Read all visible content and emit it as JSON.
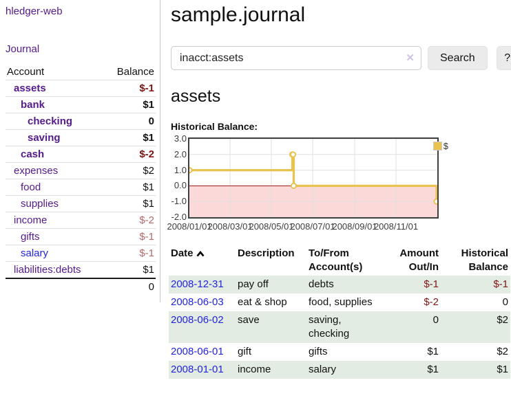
{
  "colors": {
    "purple_link": "#551a8b",
    "blue_link": "#2323dd",
    "negative_strong": "#801515",
    "negative_dim": "#b56a6a",
    "row_stripe_green": "#e2ece2",
    "series_gold": "#e9c24f",
    "negative_area_pink": "#fbd9d9",
    "zero_line_red": "#a01010",
    "button_gray": "#ebebeb"
  },
  "sidebar": {
    "app_title": "hledger-web",
    "nav": {
      "journal": "Journal"
    },
    "accounts": {
      "headers": {
        "account": "Account",
        "balance": "Balance"
      },
      "rows": [
        {
          "name": "assets",
          "balance": "$-1"
        },
        {
          "name": "bank",
          "balance": "$1"
        },
        {
          "name": "checking",
          "balance": "0"
        },
        {
          "name": "saving",
          "balance": "$1"
        },
        {
          "name": "cash",
          "balance": "$-2"
        },
        {
          "name": "expenses",
          "balance": "$2"
        },
        {
          "name": "food",
          "balance": "$1"
        },
        {
          "name": "supplies",
          "balance": "$1"
        },
        {
          "name": "income",
          "balance": "$-2"
        },
        {
          "name": "gifts",
          "balance": "$-1"
        },
        {
          "name": "salary",
          "balance": "$-1"
        },
        {
          "name": "liabilities:debts",
          "balance": "$1"
        }
      ],
      "total": "0"
    }
  },
  "main": {
    "title": "sample.journal",
    "search": {
      "value": "inacct:assets",
      "clear_icon": "✕",
      "button": "Search",
      "help_button": "?"
    },
    "account_heading": "assets",
    "chart_title": "Historical Balance:"
  },
  "chart_data": {
    "type": "line",
    "step": "after",
    "title": "Historical Balance:",
    "legend": [
      {
        "label": "$",
        "color": "#e9c24f"
      }
    ],
    "x_domain": [
      "2008-01-01",
      "2009-01-01"
    ],
    "ylim": [
      -2,
      3
    ],
    "yticks": [
      3.0,
      2.0,
      1.0,
      0.0,
      -1.0,
      -2.0
    ],
    "xticks": [
      {
        "label": "2008/01/01",
        "date": "2008-01-01"
      },
      {
        "label": "2008/03/01",
        "date": "2008-03-01"
      },
      {
        "label": "2008/05/01",
        "date": "2008-05-01"
      },
      {
        "label": "2008/07/01",
        "date": "2008-07-01"
      },
      {
        "label": "2008/09/01",
        "date": "2008-09-01"
      },
      {
        "label": "2008/11/01",
        "date": "2008-11-01"
      }
    ],
    "points": [
      {
        "date": "2008-01-01",
        "value": 1
      },
      {
        "date": "2008-06-01",
        "value": 2
      },
      {
        "date": "2008-06-02",
        "value": 2
      },
      {
        "date": "2008-06-03",
        "value": 0
      },
      {
        "date": "2008-12-31",
        "value": -1
      }
    ],
    "series_color": "#e9c24f",
    "negative_fill": "#fbd9d9",
    "zero_line_color": "#a01010",
    "grid_color": "#e0e0e0"
  },
  "register_table": {
    "headers": {
      "date": "Date",
      "description": "Description",
      "account": "To/From Account(s)",
      "amount": "Amount Out/In",
      "balance": "Historical Balance"
    },
    "rows": [
      {
        "date": "2008-12-31",
        "description": "pay off",
        "account": "debts",
        "amount": "$-1",
        "balance": "$-1"
      },
      {
        "date": "2008-06-03",
        "description": "eat & shop",
        "account": "food, supplies",
        "amount": "$-2",
        "balance": "0"
      },
      {
        "date": "2008-06-02",
        "description": "save",
        "account": "saving,\nchecking",
        "amount": "0",
        "balance": "$2"
      },
      {
        "date": "2008-06-01",
        "description": "gift",
        "account": "gifts",
        "amount": "$1",
        "balance": "$2"
      },
      {
        "date": "2008-01-01",
        "description": "income",
        "account": "salary",
        "amount": "$1",
        "balance": "$1"
      }
    ]
  }
}
